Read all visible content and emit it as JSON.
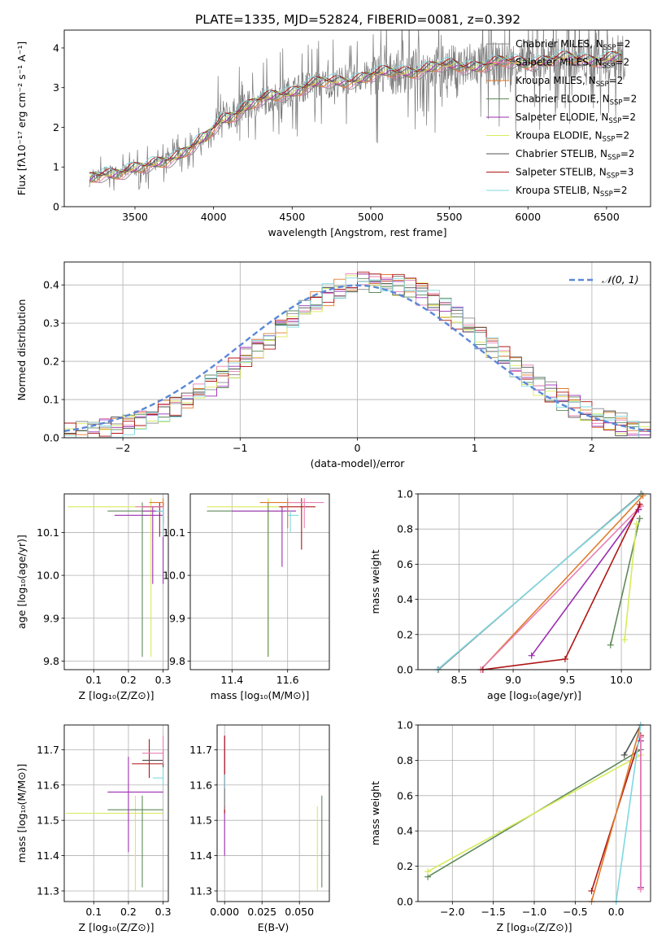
{
  "title": "PLATE=1335, MJD=52824, FIBERID=0081, z=0.392",
  "colors": {
    "chabrier_miles": "#8a8a8a",
    "salpeter_miles": "#e87fb5",
    "kroupa_miles": "#e07b2a",
    "chabrier_elodie": "#5e8a5a",
    "salpeter_elodie": "#9b2fb0",
    "kroupa_elodie": "#d8ea5a",
    "chabrier_stelib": "#505050",
    "salpeter_stelib": "#b01515",
    "kroupa_stelib": "#7fd8e0",
    "normal": "#5b88d8"
  },
  "chart_data": [
    {
      "id": "spectrum",
      "type": "line",
      "title": "PLATE=1335, MJD=52824, FIBERID=0081, z=0.392",
      "xlabel": "wavelength [Angstrom, rest frame]",
      "ylabel": "Flux [fλ10⁻¹⁷ erg cm⁻² s⁻¹ A⁻¹]",
      "xlim": [
        3050,
        6780
      ],
      "ylim": [
        0,
        4.45
      ],
      "xticks": [
        3500,
        4000,
        4500,
        5000,
        5500,
        6000,
        6500
      ],
      "yticks": [
        0,
        1,
        2,
        3,
        4
      ],
      "grid": false,
      "legend_position": "top-right",
      "legend": [
        {
          "label": "Chabrier MILES, N",
          "sub": "SSP",
          "suffix": "=2",
          "color": "chabrier_miles"
        },
        {
          "label": "Salpeter MILES, N",
          "sub": "SSP",
          "suffix": "=2",
          "color": "salpeter_miles"
        },
        {
          "label": "Kroupa MILES, N",
          "sub": "SSP",
          "suffix": "=2",
          "color": "kroupa_miles"
        },
        {
          "label": "Chabrier ELODIE, N",
          "sub": "SSP",
          "suffix": "=2",
          "color": "chabrier_elodie"
        },
        {
          "label": "Salpeter ELODIE, N",
          "sub": "SSP",
          "suffix": "=2",
          "color": "salpeter_elodie"
        },
        {
          "label": "Kroupa ELODIE, N",
          "sub": "SSP",
          "suffix": "=2",
          "color": "kroupa_elodie"
        },
        {
          "label": "Chabrier STELIB, N",
          "sub": "SSP",
          "suffix": "=2",
          "color": "chabrier_stelib"
        },
        {
          "label": "Salpeter STELIB, N",
          "sub": "SSP",
          "suffix": "=3",
          "color": "salpeter_stelib"
        },
        {
          "label": "Kroupa STELIB, N",
          "sub": "SSP",
          "suffix": "=2",
          "color": "kroupa_stelib"
        }
      ],
      "continuum": {
        "x": [
          3200,
          3300,
          3450,
          3560,
          3700,
          3850,
          3950,
          4050,
          4200,
          4400,
          4600,
          4800,
          5000,
          5200,
          5400,
          5600,
          5800,
          6000,
          6200,
          6400,
          6600
        ],
        "y": [
          0.65,
          0.85,
          0.9,
          0.95,
          1.2,
          1.45,
          1.7,
          2.2,
          2.5,
          2.8,
          3.05,
          3.15,
          3.3,
          3.4,
          3.5,
          3.55,
          3.6,
          3.65,
          3.7,
          3.72,
          3.75
        ]
      },
      "observed_range": [
        3210,
        6620
      ]
    },
    {
      "id": "residuals",
      "type": "histogram",
      "xlabel": "(data-model)/error",
      "ylabel": "Normed distribution",
      "xlim": [
        -2.5,
        2.5
      ],
      "ylim": [
        0,
        0.46
      ],
      "xticks": [
        -2,
        -1,
        0,
        1,
        2
      ],
      "yticks": [
        0.0,
        0.1,
        0.2,
        0.3,
        0.4
      ],
      "grid": true,
      "legend_position": "top-right",
      "legend_label": "𝒩(0, 1)",
      "bin_width": 0.1,
      "bins_start": -2.5,
      "reference_curve": "normal(0,1)"
    },
    {
      "id": "age_vs_Z",
      "type": "errorbar",
      "xlabel": "Z [log₁₀(Z/Z⊙)]",
      "ylabel": "age  [log₁₀(age/yr)]",
      "xlim": [
        0.015,
        0.315
      ],
      "ylim": [
        9.78,
        10.19
      ],
      "xticks": [
        0.1,
        0.2,
        0.3
      ],
      "yticks": [
        9.8,
        9.9,
        10.0,
        10.1
      ],
      "grid": true,
      "points": [
        {
          "x": 0.265,
          "y": 10.16,
          "xerr": [
            0.24,
            0.02
          ],
          "yerr": [
            0.35,
            0.02
          ],
          "color": "kroupa_elodie"
        },
        {
          "x": 0.24,
          "y": 10.15,
          "xerr": [
            0.1,
            0.06
          ],
          "yerr": [
            0.34,
            0.02
          ],
          "color": "chabrier_elodie"
        },
        {
          "x": 0.27,
          "y": 10.14,
          "xerr": [
            0.11,
            0.03
          ],
          "yerr": [
            0.16,
            0.02
          ],
          "color": "salpeter_elodie"
        },
        {
          "x": 0.3,
          "y": 10.16,
          "xerr": [
            0.06,
            0.0
          ],
          "yerr": [
            0.04,
            0.01
          ],
          "color": "chabrier_stelib"
        },
        {
          "x": 0.29,
          "y": 10.16,
          "xerr": [
            0.05,
            0.01
          ],
          "yerr": [
            0.07,
            0.01
          ],
          "color": "salpeter_stelib"
        },
        {
          "x": 0.3,
          "y": 10.16,
          "xerr": [
            0.08,
            0.0
          ],
          "yerr": [
            0.03,
            0.01
          ],
          "color": "salpeter_miles"
        },
        {
          "x": 0.3,
          "y": 10.15,
          "xerr": [
            0.06,
            0.0
          ],
          "yerr": [
            0.17,
            0.02
          ],
          "color": "salpeter_elodie"
        },
        {
          "x": 0.3,
          "y": 10.17,
          "xerr": [
            0.04,
            0.0
          ],
          "yerr": [
            0.02,
            0.01
          ],
          "color": "kroupa_miles"
        },
        {
          "x": 0.3,
          "y": 10.15,
          "xerr": [
            0.02,
            0.0
          ],
          "yerr": [
            0.06,
            0.01
          ],
          "color": "kroupa_stelib"
        }
      ]
    },
    {
      "id": "age_vs_mass",
      "type": "errorbar",
      "xlabel": "mass [log₁₀(M/M⊙)]",
      "ylabel": "",
      "xlim": [
        11.25,
        11.75
      ],
      "ylim": [
        9.78,
        10.19
      ],
      "xticks": [
        11.4,
        11.6
      ],
      "yticks": [
        9.8,
        9.9,
        10.0,
        10.1
      ],
      "grid": true,
      "points": [
        {
          "x": 11.53,
          "y": 10.16,
          "xerr": [
            0.22,
            0.05
          ],
          "yerr": [
            0.35,
            0.02
          ],
          "color": "kroupa_elodie"
        },
        {
          "x": 11.53,
          "y": 10.15,
          "xerr": [
            0.22,
            0.06
          ],
          "yerr": [
            0.34,
            0.02
          ],
          "color": "chabrier_elodie"
        },
        {
          "x": 11.58,
          "y": 10.15,
          "xerr": [
            0.18,
            0.05
          ],
          "yerr": [
            0.13,
            0.01
          ],
          "color": "salpeter_elodie"
        },
        {
          "x": 11.65,
          "y": 10.16,
          "xerr": [
            0.08,
            0.05
          ],
          "yerr": [
            0.1,
            0.02
          ],
          "color": "salpeter_stelib"
        },
        {
          "x": 11.6,
          "y": 10.17,
          "xerr": [
            0.1,
            0.05
          ],
          "yerr": [
            0.06,
            0.01
          ],
          "color": "kroupa_miles"
        },
        {
          "x": 11.66,
          "y": 10.17,
          "xerr": [
            0.06,
            0.07
          ],
          "yerr": [
            0.06,
            0.01
          ],
          "color": "salpeter_miles"
        },
        {
          "x": 11.61,
          "y": 10.14,
          "xerr": [
            0.01,
            0.03
          ],
          "yerr": [
            0.04,
            0.01
          ],
          "color": "kroupa_stelib"
        }
      ]
    },
    {
      "id": "massweight_vs_age",
      "type": "line",
      "xlabel": "age  [log₁₀(age/yr)]",
      "ylabel": "mass weight",
      "xlim": [
        8.12,
        10.27
      ],
      "ylim": [
        0,
        1
      ],
      "xticks": [
        8.5,
        9.0,
        9.5,
        10.0
      ],
      "yticks": [
        0.0,
        0.2,
        0.4,
        0.6,
        0.8,
        1.0
      ],
      "grid": true,
      "series": [
        {
          "color": "chabrier_miles",
          "x": [
            8.31,
            10.18
          ],
          "y": [
            0.0,
            1.0
          ]
        },
        {
          "color": "kroupa_stelib",
          "x": [
            8.3,
            10.19
          ],
          "y": [
            0.0,
            1.0
          ]
        },
        {
          "color": "kroupa_miles",
          "x": [
            8.7,
            10.2
          ],
          "y": [
            0.0,
            0.99
          ]
        },
        {
          "color": "salpeter_miles",
          "x": [
            8.7,
            10.18
          ],
          "y": [
            0.0,
            0.93
          ]
        },
        {
          "color": "salpeter_elodie",
          "x": [
            9.17,
            10.16
          ],
          "y": [
            0.08,
            0.91
          ]
        },
        {
          "color": "salpeter_stelib",
          "x": [
            8.72,
            9.48,
            10.17
          ],
          "y": [
            0.0,
            0.06,
            0.94
          ]
        },
        {
          "color": "chabrier_elodie",
          "x": [
            9.9,
            10.17
          ],
          "y": [
            0.14,
            0.86
          ]
        },
        {
          "color": "kroupa_elodie",
          "x": [
            10.03,
            10.14
          ],
          "y": [
            0.17,
            0.83
          ]
        }
      ]
    },
    {
      "id": "mass_vs_Z",
      "type": "errorbar",
      "xlabel": "Z [log₁₀(Z/Z⊙)]",
      "ylabel": "mass [log₁₀(M/M⊙)]",
      "xlim": [
        0.015,
        0.315
      ],
      "ylim": [
        11.27,
        11.77
      ],
      "xticks": [
        0.1,
        0.2,
        0.3
      ],
      "yticks": [
        11.3,
        11.4,
        11.5,
        11.6,
        11.7
      ],
      "grid": true,
      "points": [
        {
          "x": 0.22,
          "y": 11.52,
          "xerr": [
            0.2,
            0.08
          ],
          "yerr": [
            0.22,
            0.05
          ],
          "color": "kroupa_elodie"
        },
        {
          "x": 0.24,
          "y": 11.53,
          "xerr": [
            0.1,
            0.06
          ],
          "yerr": [
            0.22,
            0.04
          ],
          "color": "chabrier_elodie"
        },
        {
          "x": 0.2,
          "y": 11.58,
          "xerr": [
            0.06,
            0.1
          ],
          "yerr": [
            0.17,
            0.1
          ],
          "color": "salpeter_elodie"
        },
        {
          "x": 0.26,
          "y": 11.66,
          "xerr": [
            0.05,
            0.04
          ],
          "yerr": [
            0.04,
            0.07
          ],
          "color": "salpeter_stelib"
        },
        {
          "x": 0.3,
          "y": 11.67,
          "xerr": [
            0.06,
            0.0
          ],
          "yerr": [
            0.02,
            0.03
          ],
          "color": "chabrier_stelib"
        },
        {
          "x": 0.3,
          "y": 11.69,
          "xerr": [
            0.06,
            0.0
          ],
          "yerr": [
            0.03,
            0.05
          ],
          "color": "salpeter_miles"
        },
        {
          "x": 0.3,
          "y": 11.62,
          "xerr": [
            0.03,
            0.0
          ],
          "yerr": [
            0.02,
            0.03
          ],
          "color": "kroupa_stelib"
        }
      ]
    },
    {
      "id": "mass_vs_ebv",
      "type": "errorbar",
      "xlabel": "E(B-V)",
      "ylabel": "",
      "xlim": [
        -0.005,
        0.07
      ],
      "ylim": [
        11.27,
        11.77
      ],
      "xticks": [
        0.0,
        0.025,
        0.05
      ],
      "xticklabels": [
        "0.000",
        "0.025",
        "0.050"
      ],
      "yticks": [
        11.3,
        11.4,
        11.5,
        11.6,
        11.7
      ],
      "grid": true,
      "points": [
        {
          "x": 0.0,
          "y": 11.6,
          "xerr": [
            0,
            0
          ],
          "yerr": [
            0.2,
            0.14
          ],
          "color": "salpeter_elodie"
        },
        {
          "x": 0.0,
          "y": 11.62,
          "xerr": [
            0,
            0
          ],
          "yerr": [
            0.1,
            0.12
          ],
          "color": "salpeter_stelib"
        },
        {
          "x": 0.0,
          "y": 11.58,
          "xerr": [
            0,
            0
          ],
          "yerr": [
            0.04,
            0.05
          ],
          "color": "kroupa_stelib"
        },
        {
          "x": 0.0,
          "y": 11.56,
          "xerr": [
            0,
            0
          ],
          "yerr": [
            0.03,
            0.03
          ],
          "color": "chabrier_miles"
        },
        {
          "x": 0.062,
          "y": 11.42,
          "xerr": [
            0,
            0
          ],
          "yerr": [
            0.12,
            0.12
          ],
          "color": "kroupa_elodie"
        },
        {
          "x": 0.065,
          "y": 11.44,
          "xerr": [
            0,
            0
          ],
          "yerr": [
            0.13,
            0.13
          ],
          "color": "chabrier_elodie"
        }
      ]
    },
    {
      "id": "massweight_vs_Z",
      "type": "line",
      "xlabel": "Z [log₁₀(Z/Z⊙)]",
      "ylabel": "mass weight",
      "xlim": [
        -2.42,
        0.42
      ],
      "ylim": [
        0,
        1
      ],
      "xticks": [
        -2.0,
        -1.5,
        -1.0,
        -0.5,
        0.0
      ],
      "yticks": [
        0.0,
        0.2,
        0.4,
        0.6,
        0.8,
        1.0
      ],
      "grid": true,
      "series": [
        {
          "color": "chabrier_elodie",
          "x": [
            -2.3,
            0.3
          ],
          "y": [
            0.14,
            0.86
          ]
        },
        {
          "color": "kroupa_elodie",
          "x": [
            -2.3,
            0.3
          ],
          "y": [
            0.17,
            0.83
          ]
        },
        {
          "color": "chabrier_stelib",
          "x": [
            0.1,
            0.3
          ],
          "y": [
            0.83,
            1.0
          ]
        },
        {
          "color": "salpeter_stelib",
          "x": [
            -0.3,
            0.3
          ],
          "y": [
            0.06,
            0.94
          ]
        },
        {
          "color": "kroupa_miles",
          "x": [
            -0.3,
            0.3
          ],
          "y": [
            0.0,
            1.0
          ]
        },
        {
          "color": "kroupa_stelib",
          "x": [
            0.0,
            0.3
          ],
          "y": [
            0.0,
            1.0
          ]
        },
        {
          "color": "salpeter_elodie",
          "x": [
            0.3,
            0.3
          ],
          "y": [
            0.08,
            0.91
          ]
        },
        {
          "color": "salpeter_miles",
          "x": [
            0.3,
            0.3
          ],
          "y": [
            0.07,
            0.93
          ]
        }
      ]
    }
  ]
}
